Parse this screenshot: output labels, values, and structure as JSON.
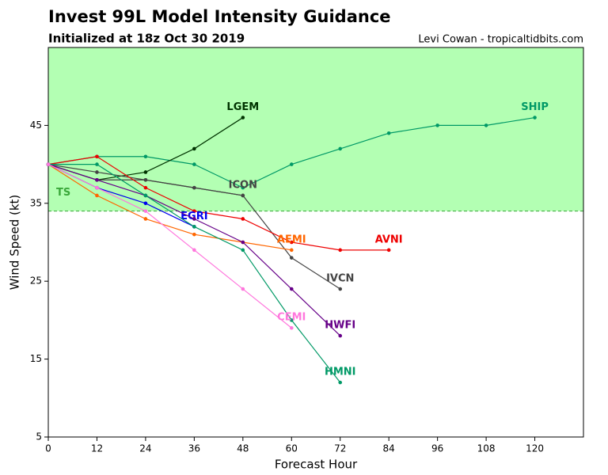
{
  "chart_data": {
    "type": "line",
    "title": "Invest 99L Model Intensity Guidance",
    "subtitle": "Initialized at 18z Oct 30 2019",
    "credit": "Levi Cowan - tropicaltidbits.com",
    "x_label": "Forecast Hour",
    "y_label": "Wind Speed (kt)",
    "xlim": [
      0,
      132
    ],
    "ylim": [
      5,
      55
    ],
    "xticks": [
      0,
      12,
      24,
      36,
      48,
      60,
      72,
      84,
      96,
      108,
      120
    ],
    "yticks": [
      5,
      15,
      25,
      35,
      45
    ],
    "threshold": {
      "value": 34,
      "label": "TS",
      "color": "#3aa83a",
      "fill": "#b3ffb3"
    },
    "x": [
      0,
      12,
      24,
      36,
      48,
      60,
      72,
      84,
      96,
      108,
      120
    ],
    "series": [
      {
        "name": "SHIP",
        "color": "#009966",
        "values": [
          40,
          41,
          41,
          40,
          37,
          40,
          42,
          44,
          45,
          45,
          46
        ]
      },
      {
        "name": "LGEM",
        "color": "#003300",
        "values": [
          40,
          38,
          39,
          42,
          46,
          null,
          null,
          null,
          null,
          null,
          null
        ]
      },
      {
        "name": "ICON",
        "color": "#444444",
        "values": [
          40,
          38,
          38,
          37,
          36,
          null,
          null,
          null,
          null,
          null,
          null
        ]
      },
      {
        "name": "IVCN",
        "color": "#444444",
        "values": [
          40,
          39,
          38,
          37,
          36,
          28,
          24,
          null,
          null,
          null,
          null
        ]
      },
      {
        "name": "AVNI",
        "color": "#ee0000",
        "values": [
          40,
          41,
          37,
          34,
          33,
          30,
          29,
          29,
          null,
          null,
          null
        ]
      },
      {
        "name": "AEMI",
        "color": "#ff6600",
        "values": [
          40,
          36,
          33,
          31,
          30,
          29,
          null,
          null,
          null,
          null,
          null
        ]
      },
      {
        "name": "EGRI",
        "color": "#0000ee",
        "values": [
          40,
          37,
          35,
          32,
          null,
          null,
          null,
          null,
          null,
          null,
          null
        ]
      },
      {
        "name": "HWFI",
        "color": "#660088",
        "values": [
          40,
          38,
          36,
          33,
          30,
          24,
          18,
          null,
          null,
          null,
          null
        ]
      },
      {
        "name": "HMNI",
        "color": "#009966",
        "values": [
          40,
          40,
          36,
          32,
          29,
          20,
          12,
          null,
          null,
          null,
          null
        ]
      },
      {
        "name": "CEMI",
        "color": "#ff77dd",
        "values": [
          40,
          37,
          34,
          29,
          24,
          19,
          null,
          null,
          null,
          null,
          null
        ]
      }
    ]
  }
}
